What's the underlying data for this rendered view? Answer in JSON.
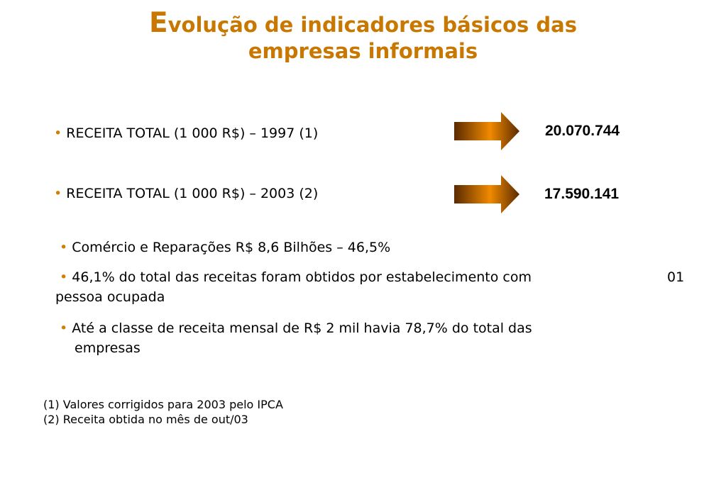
{
  "title": {
    "first_letter": "E",
    "line1_rest": "volução de indicadores básicos das",
    "line2": "empresas informais"
  },
  "bullet_symbol": "•",
  "receita": [
    {
      "label": "RECEITA TOTAL (1 000 R$) – 1997 (1)",
      "value": "20.070.744"
    },
    {
      "label": "RECEITA TOTAL (1 000 R$) – 2003 (2)",
      "value": "17.590.141"
    }
  ],
  "bullets": [
    {
      "text": "Comércio e Reparações R$ 8,6 Bilhões – 46,5%"
    },
    {
      "line1": "46,1% do total das receitas foram obtidos por estabelecimento com",
      "line1_suffix": "01",
      "line2": "pessoa ocupada"
    },
    {
      "line1": "Até a classe de receita mensal de R$ 2 mil havia 78,7% do total das",
      "line2": "empresas"
    }
  ],
  "footnotes": [
    "(1) Valores corrigidos para 2003 pelo IPCA",
    "(2) Receita obtida no mês de out/03"
  ],
  "colors": {
    "title": "#c87800",
    "bullet": "#d08000",
    "arrow_dark": "#5a2a00",
    "arrow_light": "#f08a00"
  }
}
